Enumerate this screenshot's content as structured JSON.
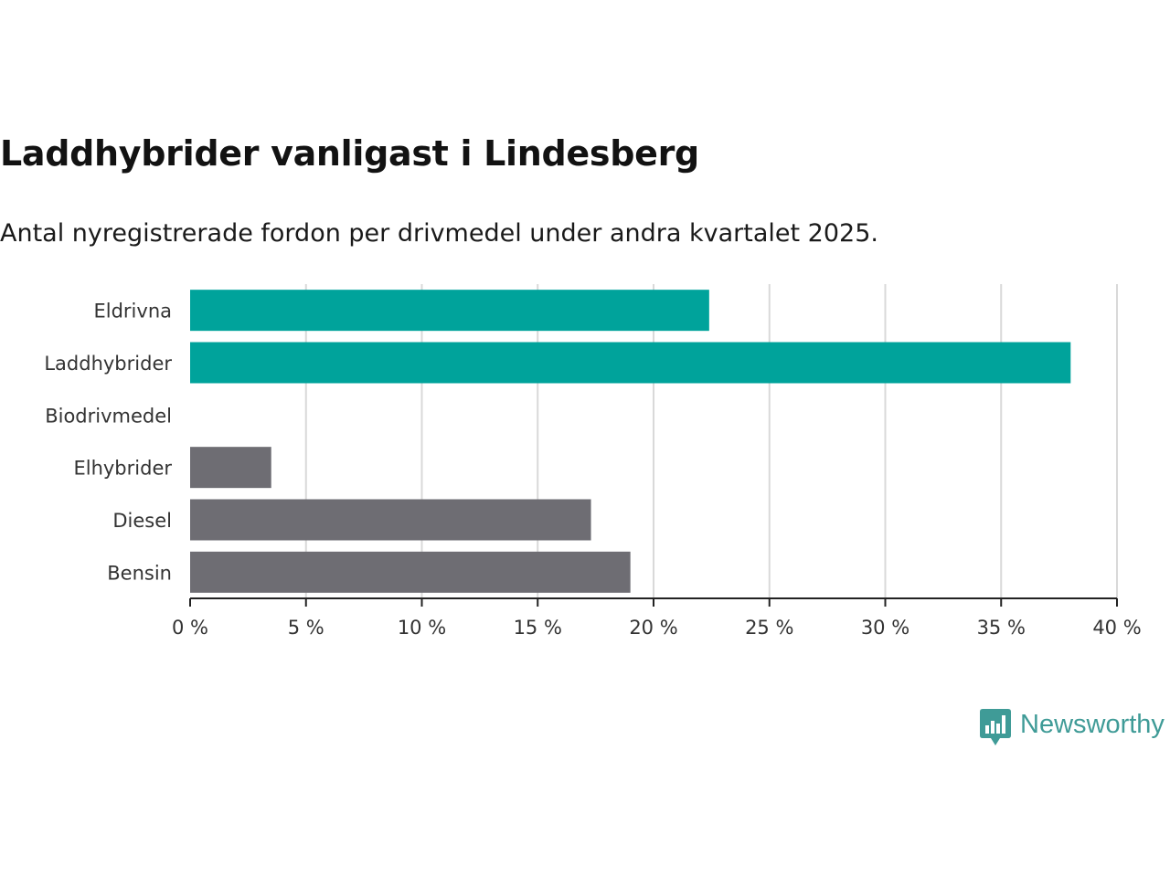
{
  "title": "Laddhybrider vanligast i Lindesberg",
  "subtitle": "Antal nyregistrerade fordon per drivmedel under andra kvartalet 2025.",
  "brand": {
    "name": "Newsworthy",
    "color": "#3f9b97",
    "icon": "bar-chart-speech-bubble-icon"
  },
  "colors": {
    "highlight": "#00a39b",
    "other": "#6e6d73",
    "grid": "#d9d9d9",
    "axis": "#222222"
  },
  "chart_data": {
    "type": "bar",
    "orientation": "horizontal",
    "categories": [
      "Eldrivna",
      "Laddhybrider",
      "Biodrivmedel",
      "Elhybrider",
      "Diesel",
      "Bensin"
    ],
    "values": [
      22.4,
      38.0,
      0,
      3.5,
      17.3,
      19.0
    ],
    "bar_color_groups": [
      "highlight",
      "highlight",
      "highlight",
      "other",
      "other",
      "other"
    ],
    "xlim": [
      0,
      40
    ],
    "xticks": [
      0,
      5,
      10,
      15,
      20,
      25,
      30,
      35,
      40
    ],
    "xtick_labels": [
      "0 %",
      "5 %",
      "10 %",
      "15 %",
      "20 %",
      "25 %",
      "30 %",
      "35 %",
      "40 %"
    ],
    "grid": "vertical",
    "legend": "none"
  }
}
